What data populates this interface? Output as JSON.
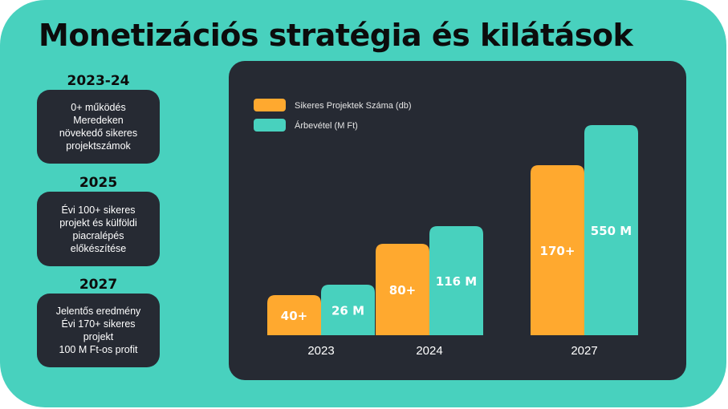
{
  "page": {
    "title": "Monetizációs stratégia és kilátások"
  },
  "milestones": [
    {
      "year": "2023-24",
      "lines": [
        "0+ működés",
        "Meredeken",
        "növekedő sikeres",
        "projektszámok"
      ]
    },
    {
      "year": "2025",
      "lines": [
        "Évi 100+ sikeres",
        "projekt és külföldi",
        "piacralépés",
        "előkészítése"
      ]
    },
    {
      "year": "2027",
      "lines": [
        "Jelentős eredmény",
        "Évi 170+ sikeres",
        "projekt",
        "100 M Ft-os profit"
      ]
    }
  ],
  "chart_data": {
    "type": "bar",
    "categories": [
      "2023",
      "2024",
      "2027"
    ],
    "series": [
      {
        "name": "Sikeres Projektek Száma (db)",
        "values": [
          40,
          80,
          170
        ],
        "labels": [
          "40+",
          "80+",
          "170+"
        ],
        "color": "#FFA92F"
      },
      {
        "name": "Árbevétel (M Ft)",
        "values": [
          26,
          116,
          550
        ],
        "labels": [
          "26 M",
          "116 M",
          "550 M"
        ],
        "color": "#48D1BE"
      }
    ],
    "legend_position": "top-left",
    "grid": false
  },
  "colors": {
    "background": "#48D1BE",
    "panel": "#262A33",
    "orange": "#FFA92F",
    "teal": "#48D1BE"
  }
}
